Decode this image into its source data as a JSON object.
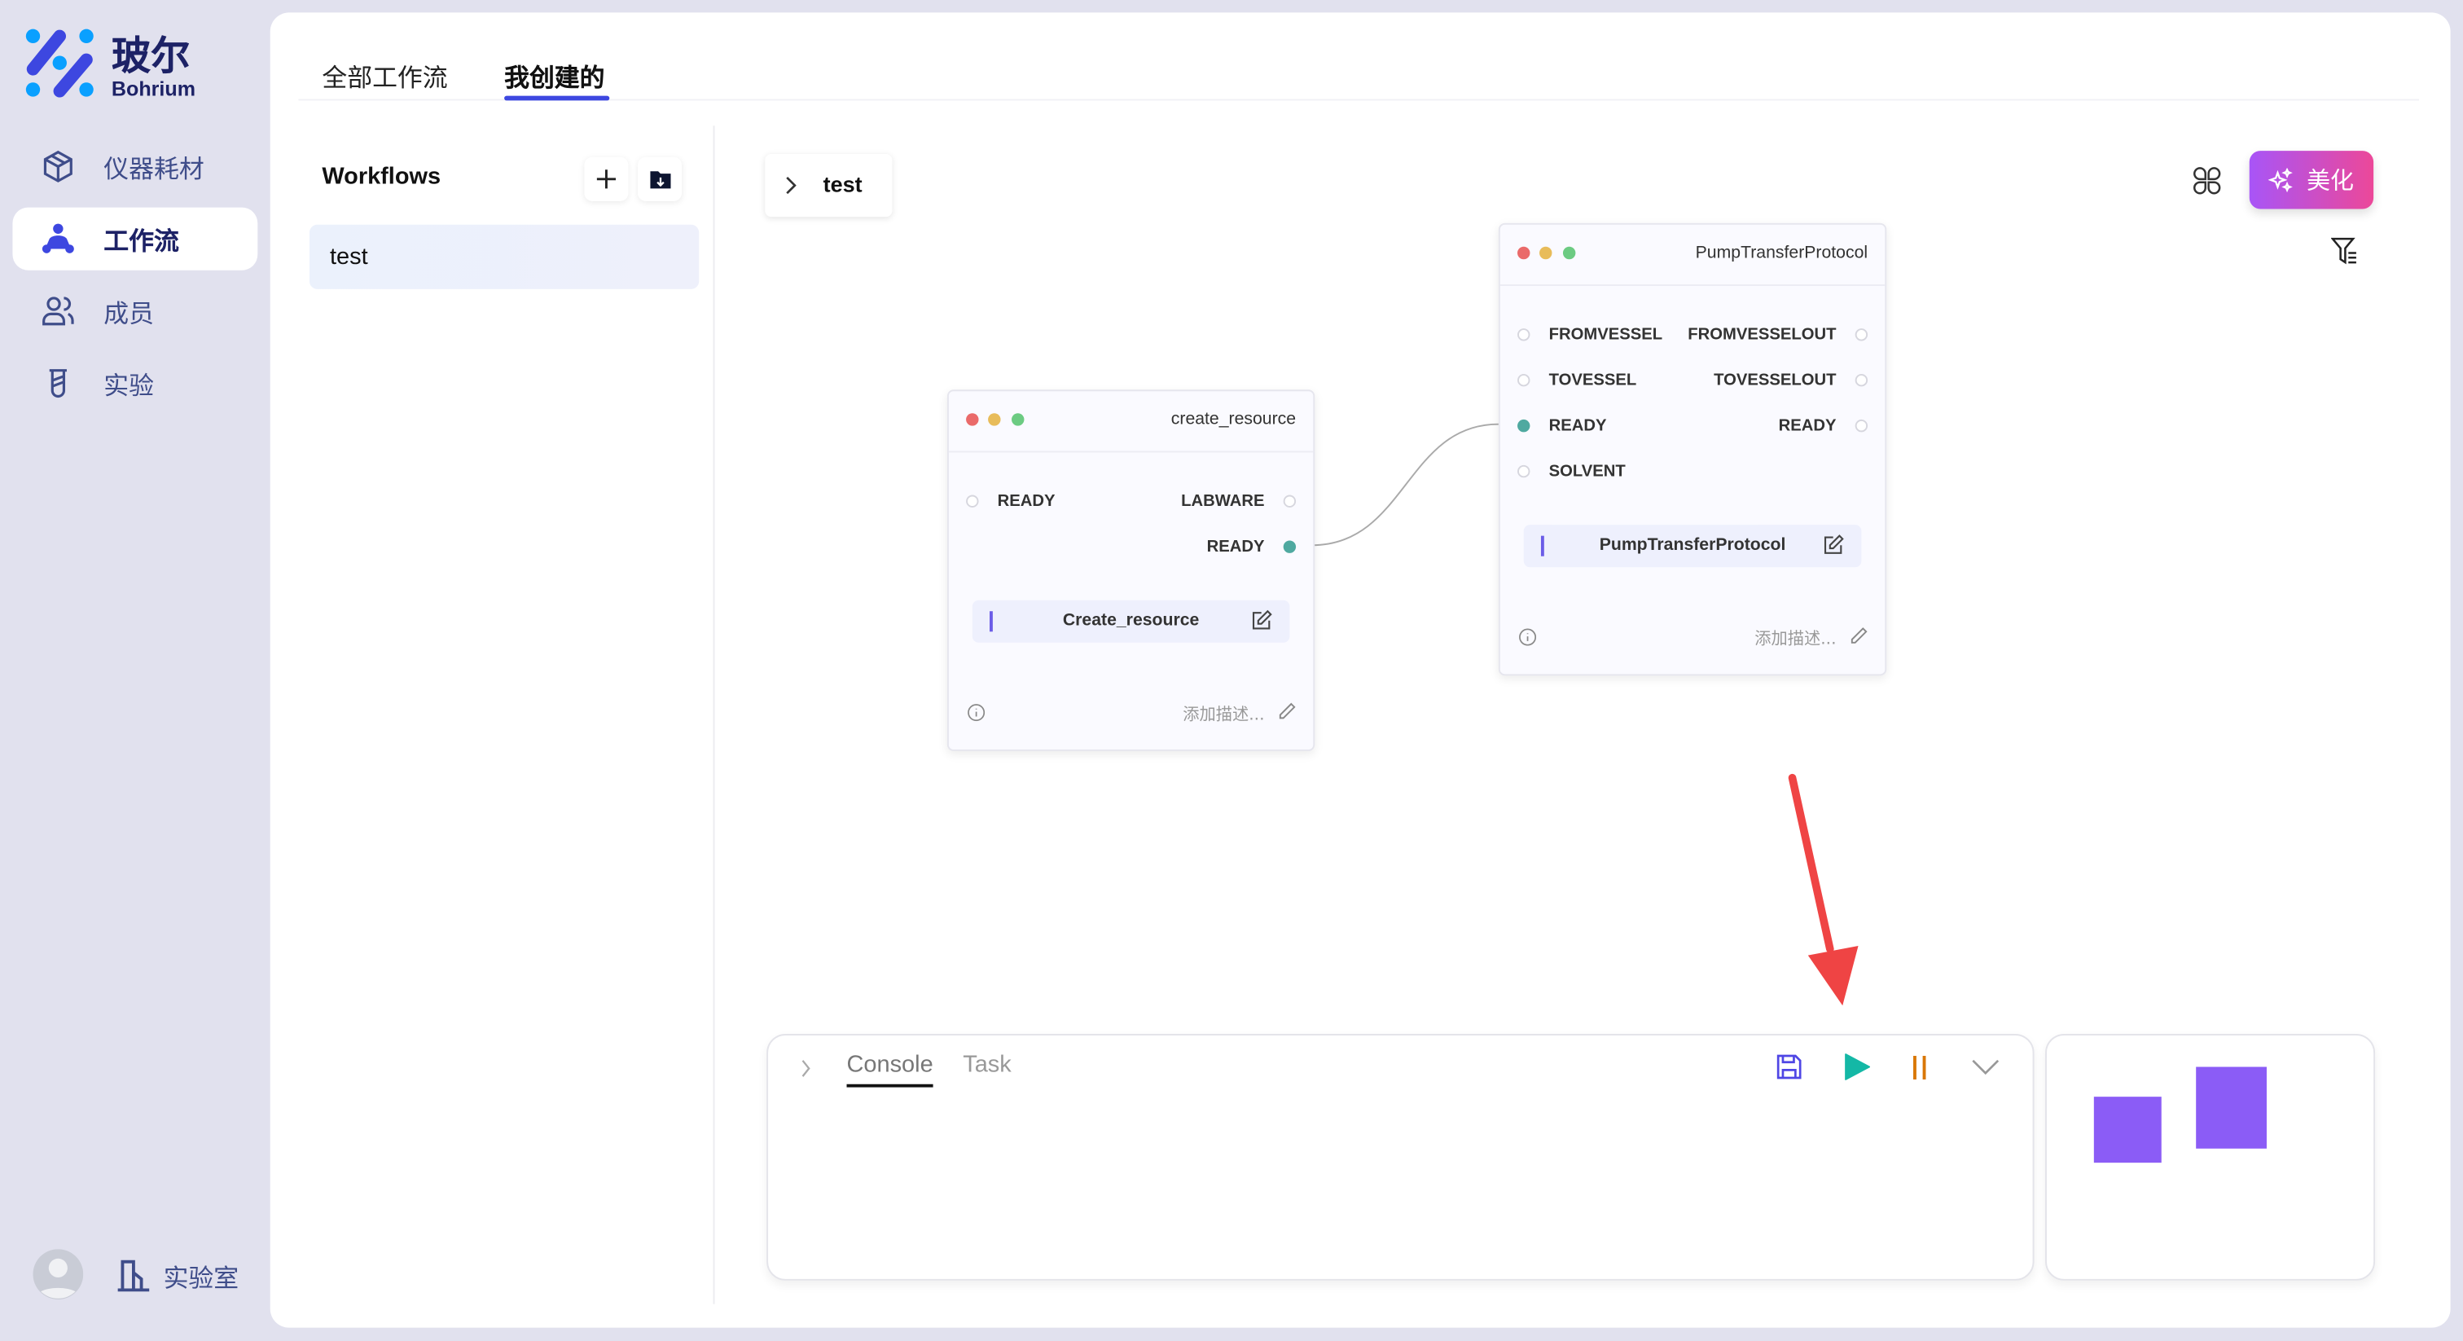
{
  "brand": {
    "name": "玻尔",
    "sub": "Bohrium"
  },
  "sidebar": {
    "items": [
      {
        "label": "仪器耗材",
        "icon": "box-icon",
        "active": false
      },
      {
        "label": "工作流",
        "icon": "workflow-icon",
        "active": true
      },
      {
        "label": "成员",
        "icon": "users-icon",
        "active": false
      },
      {
        "label": "实验",
        "icon": "beaker-icon",
        "active": false
      }
    ],
    "lab_label": "实验室"
  },
  "tabs": [
    {
      "label": "全部工作流",
      "active": false
    },
    {
      "label": "我创建的",
      "active": true
    }
  ],
  "workflows": {
    "title": "Workflows",
    "items": [
      {
        "label": "test",
        "selected": true
      }
    ]
  },
  "canvas": {
    "breadcrumb": "test",
    "beautify_label": "美化",
    "nodes": [
      {
        "title": "create_resource",
        "inputs": [
          "READY"
        ],
        "outputs": [
          "LABWARE",
          "READY"
        ],
        "name": "Create_resource",
        "desc_placeholder": "添加描述..."
      },
      {
        "title": "PumpTransferProtocol",
        "inputs": [
          "FROMVESSEL",
          "TOVESSEL",
          "READY",
          "SOLVENT"
        ],
        "outputs": [
          "FROMVESSELOUT",
          "TOVESSELOUT",
          "READY"
        ],
        "name": "PumpTransferProtocol",
        "desc_placeholder": "添加描述..."
      }
    ],
    "edges": [
      {
        "from": "create_resource.READY",
        "to": "PumpTransferProtocol.READY"
      }
    ]
  },
  "console": {
    "tabs": [
      {
        "label": "Console",
        "active": true
      },
      {
        "label": "Task",
        "active": false
      }
    ]
  },
  "colors": {
    "accent": "#3d47e0",
    "run": "#14b8a6",
    "pause": "#d97706",
    "minimap": "#8b5cf6",
    "port_connected": "#4fa9a0",
    "annotation_arrow": "#ef4444"
  }
}
